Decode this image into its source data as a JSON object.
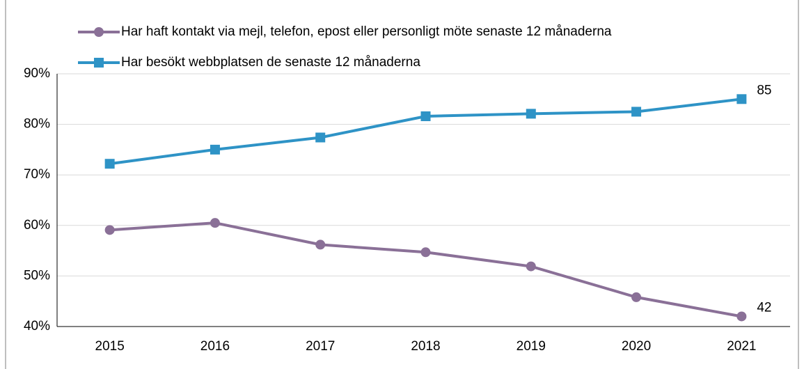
{
  "chart_data": {
    "type": "line",
    "categories": [
      "2015",
      "2016",
      "2017",
      "2018",
      "2019",
      "2020",
      "2021"
    ],
    "series": [
      {
        "name": "Har haft kontakt via mejl, telefon, epost eller personligt möte senaste 12 månaderna",
        "color": "#8a7097",
        "marker": "circle",
        "values": [
          59.1,
          60.5,
          56.2,
          54.7,
          51.9,
          45.8,
          42
        ]
      },
      {
        "name": "Har besökt webbplatsen de senaste 12 månaderna",
        "color": "#2e93c6",
        "marker": "square",
        "values": [
          72.2,
          75,
          77.4,
          81.6,
          82.1,
          82.5,
          85
        ]
      }
    ],
    "ylim": [
      40,
      90
    ],
    "yticks": [
      {
        "value": 40,
        "label": "40%"
      },
      {
        "value": 50,
        "label": "50%"
      },
      {
        "value": 60,
        "label": "60%"
      },
      {
        "value": 70,
        "label": "70%"
      },
      {
        "value": 80,
        "label": "80%"
      },
      {
        "value": 90,
        "label": "90%"
      }
    ],
    "grid": true,
    "legend": "top"
  }
}
